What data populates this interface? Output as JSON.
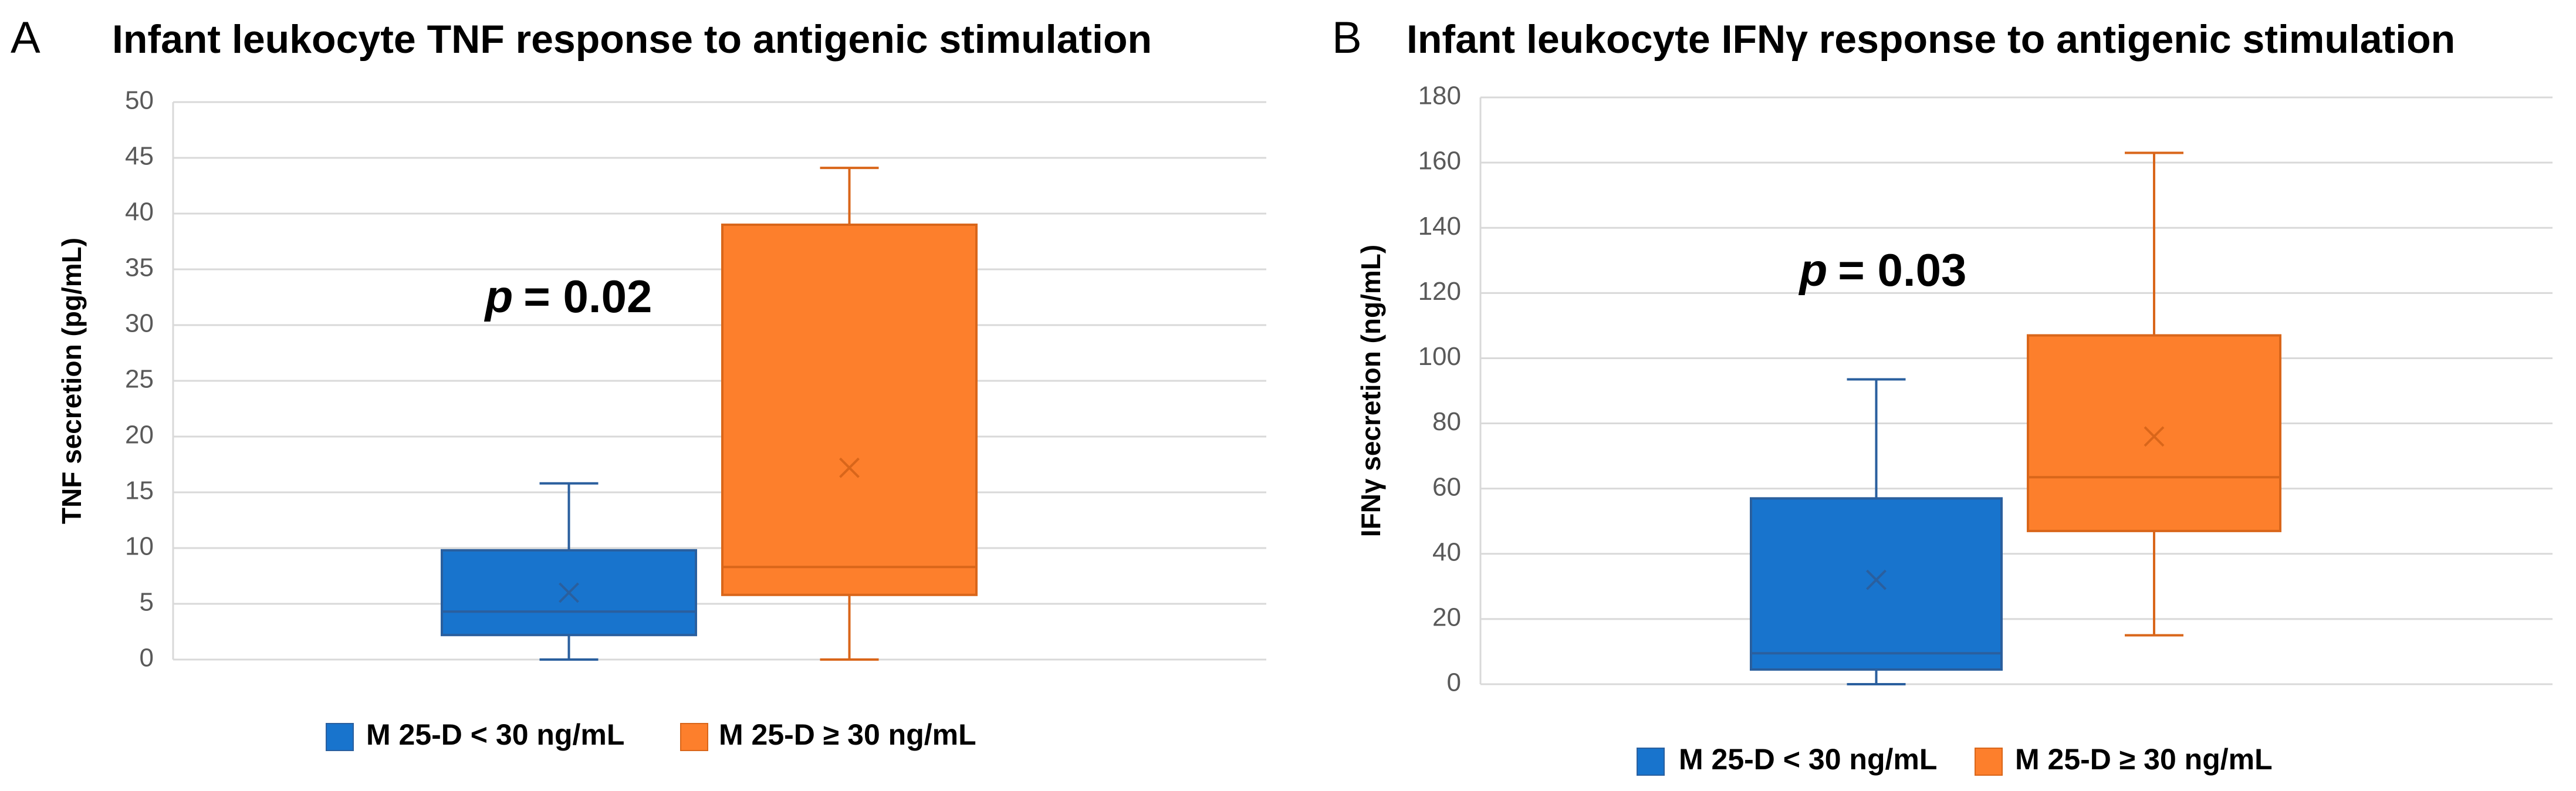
{
  "chart_data": [
    {
      "type": "box",
      "panel": "A",
      "title": "Infant leukocyte TNF response to antigenic stimulation",
      "y_label": "TNF secretion (pg/mL)",
      "annotation": [
        "p",
        "= 0.02"
      ],
      "ylim": [
        0,
        50
      ],
      "yticks": [
        0,
        5,
        10,
        15,
        20,
        25,
        30,
        35,
        40,
        45,
        50
      ],
      "grid": true,
      "series": [
        {
          "name": "M 25-D < 30 ng/mL",
          "color": "#1874cd",
          "edge": "#2a5f9e",
          "min": 0,
          "q1": 2.2,
          "median": 4.3,
          "q3": 9.8,
          "max": 15.8,
          "mean": 6.0
        },
        {
          "name": "M 25-D ≥ 30 ng/mL",
          "color": "#fd7f2c",
          "edge": "#d9661a",
          "min": 0,
          "q1": 5.8,
          "median": 8.3,
          "q3": 39,
          "max": 44.1,
          "mean": 17.2
        }
      ]
    },
    {
      "type": "box",
      "panel": "B",
      "title": "Infant leukocyte IFNγ response to antigenic stimulation",
      "y_label": "IFNγ secretion (ng/mL)",
      "annotation": [
        "p",
        "= 0.03"
      ],
      "ylim": [
        0,
        180
      ],
      "yticks": [
        0,
        20,
        40,
        60,
        80,
        100,
        120,
        140,
        160,
        180
      ],
      "grid": true,
      "series": [
        {
          "name": "M 25-D < 30 ng/mL",
          "color": "#1874cd",
          "edge": "#2a5f9e",
          "min": 0,
          "q1": 4.5,
          "median": 9.5,
          "q3": 57,
          "max": 93.5,
          "mean": 32
        },
        {
          "name": "M 25-D ≥ 30 ng/mL",
          "color": "#fd7f2c",
          "edge": "#d9661a",
          "min": 15,
          "q1": 47,
          "median": 63.5,
          "q3": 107,
          "max": 163,
          "mean": 76
        }
      ]
    }
  ]
}
